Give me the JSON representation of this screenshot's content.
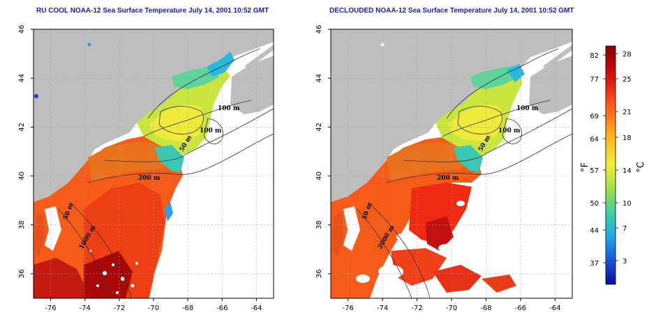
{
  "map_left": {
    "title": "RU COOL NOAA-12 Sea Surface Temperature July 14, 2001 10:52 GMT",
    "contour_labels": [
      "100 m",
      "100 m",
      "50 m",
      "200 m",
      "50 m",
      "1000 m"
    ]
  },
  "map_right": {
    "title": "DECLOUDED NOAA-12 Sea Surface Temperature July 14, 2001 10:52 GMT",
    "contour_labels": [
      "100 m",
      "100 m",
      "50 m",
      "200 m",
      "50 m",
      "2000 m"
    ]
  },
  "axes": {
    "x_ticks": [
      "-76",
      "-74",
      "-72",
      "-70",
      "-68",
      "-66",
      "-64"
    ],
    "y_ticks": [
      "46",
      "44",
      "42",
      "40",
      "38",
      "36"
    ],
    "x_range": [
      -77,
      -63
    ],
    "y_range": [
      35,
      46
    ]
  },
  "color_scale": {
    "fahrenheit_label": "°F",
    "celsius_label": "°C",
    "fahrenheit_ticks": [
      "82",
      "77",
      "69",
      "64",
      "57",
      "50",
      "44",
      "37"
    ],
    "celsius_ticks": [
      "28",
      "25",
      "21",
      "18",
      "14",
      "10",
      "7",
      "3"
    ],
    "colors": [
      "#8b0000",
      "#e01010",
      "#ff6a1a",
      "#ffb41e",
      "#f4ee3a",
      "#b6e53e",
      "#4fd39a",
      "#22b4e6",
      "#1e6fe6",
      "#0a1aa8"
    ]
  },
  "colors": {
    "land": "#bebebe",
    "water_no_data": "#ffffff",
    "title_text": "#1a1aa8"
  }
}
